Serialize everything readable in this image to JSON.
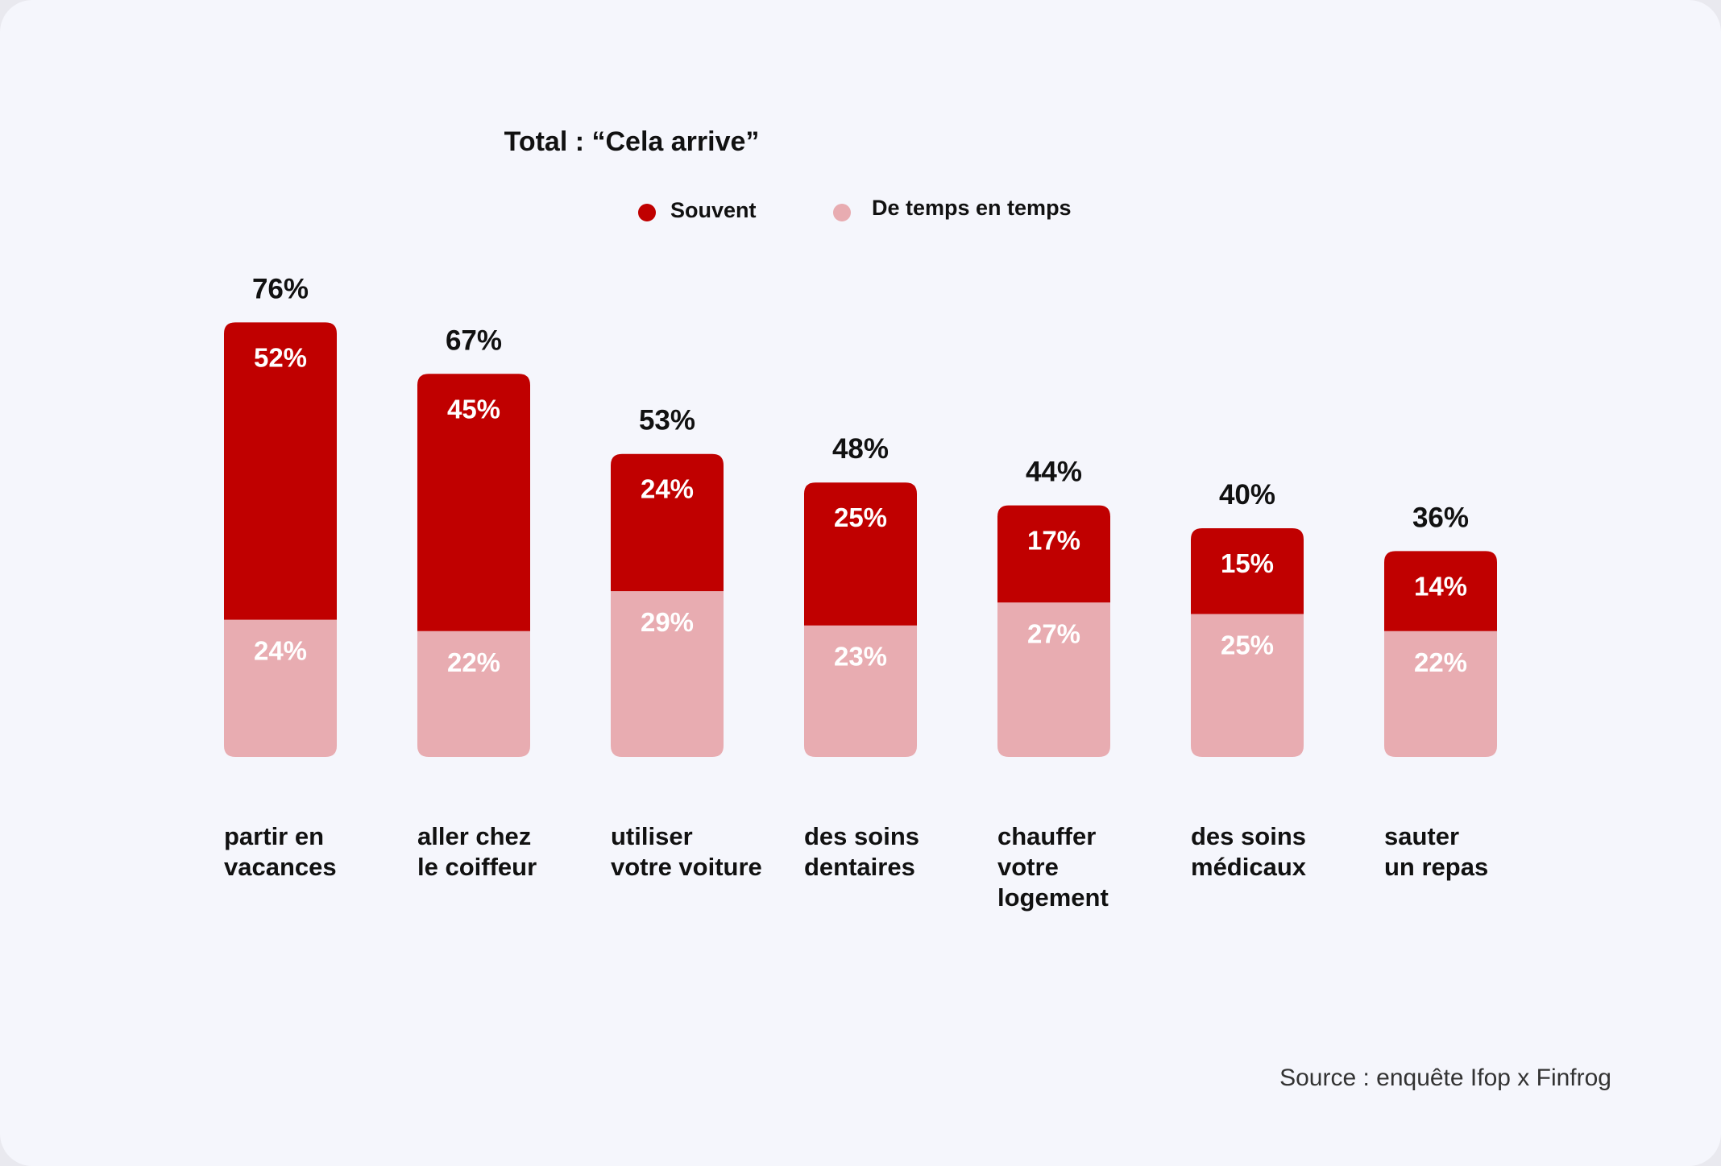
{
  "title": "Total : “Cela arrive”",
  "legend": [
    {
      "label": "Souvent",
      "color": "#c00000"
    },
    {
      "label": "De temps en temps",
      "color": "#e8acb1"
    }
  ],
  "source": "Source : enquête Ifop x Finfrog",
  "chart_data": {
    "type": "bar",
    "stacked": true,
    "title": "Total : “Cela arrive”",
    "categories": [
      [
        "partir en",
        "vacances"
      ],
      [
        "aller chez",
        "le coiffeur"
      ],
      [
        "utiliser",
        "votre voiture"
      ],
      [
        "des soins",
        "dentaires"
      ],
      [
        "chauffer",
        "votre",
        "logement"
      ],
      [
        "des soins",
        "médicaux"
      ],
      [
        "sauter",
        "un repas"
      ]
    ],
    "totals": [
      76,
      67,
      53,
      48,
      44,
      40,
      36
    ],
    "totals_labels": [
      "76%",
      "67%",
      "53%",
      "48%",
      "44%",
      "40%",
      "36%"
    ],
    "series": [
      {
        "name": "Souvent",
        "color": "#c00000",
        "values": [
          52,
          45,
          24,
          25,
          17,
          15,
          14
        ],
        "labels": [
          "52%",
          "45%",
          "24%",
          "25%",
          "17%",
          "15%",
          "14%"
        ]
      },
      {
        "name": "De temps en temps",
        "color": "#e8acb1",
        "values": [
          24,
          22,
          29,
          23,
          27,
          25,
          22
        ],
        "labels": [
          "24%",
          "22%",
          "29%",
          "23%",
          "27%",
          "25%",
          "22%"
        ]
      }
    ],
    "legend": "top-center",
    "grid": false
  }
}
